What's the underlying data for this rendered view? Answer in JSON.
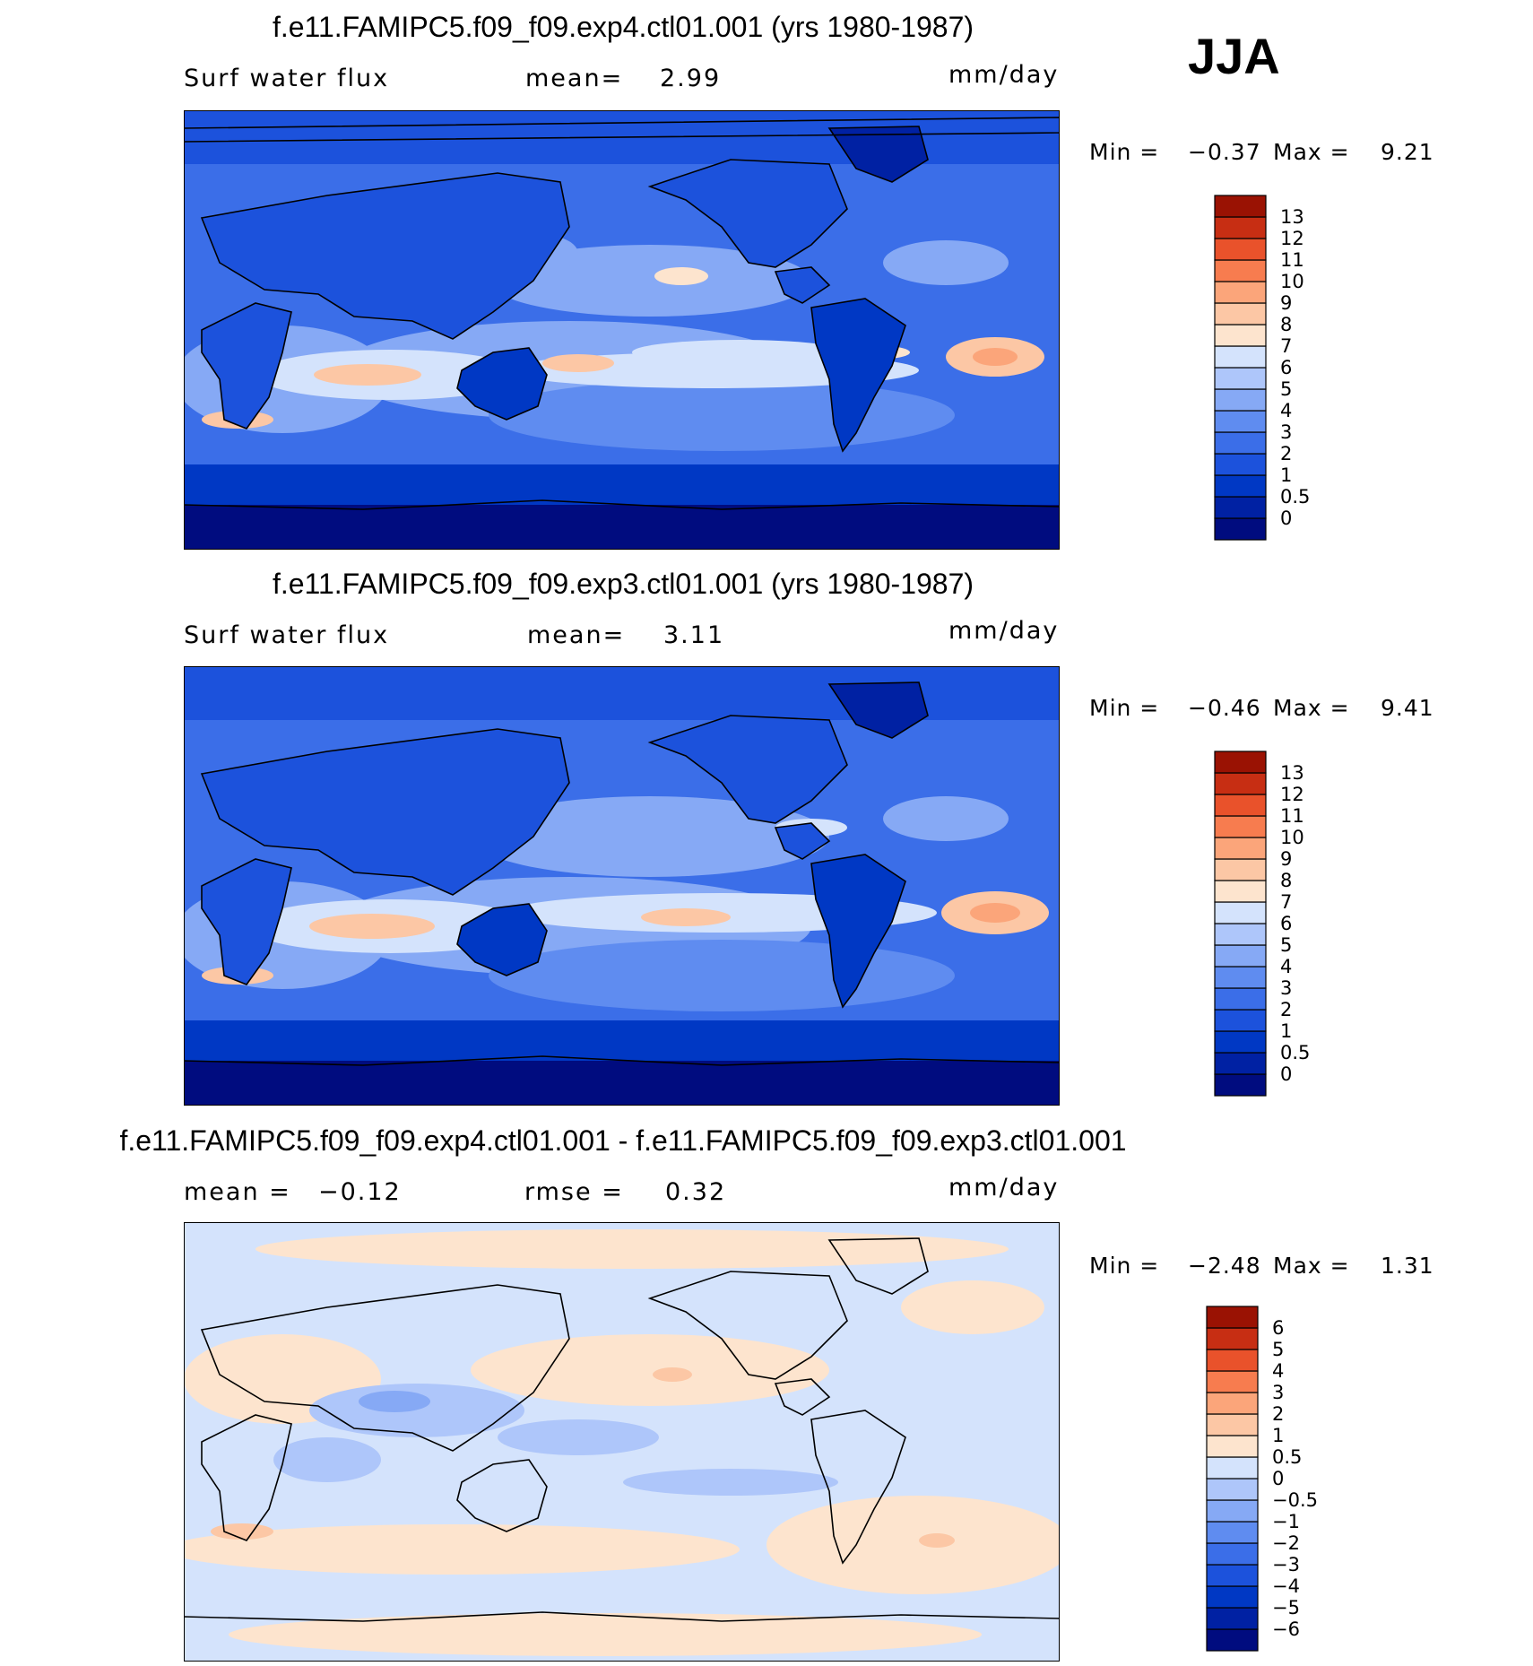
{
  "season": "JJA",
  "panels": [
    {
      "title": "f.e11.FAMIPC5.f09_f09.exp4.ctl01.001 (yrs 1980-1987)",
      "left_label": "Surf water flux",
      "stat_label": "mean=",
      "stat_value": "2.99",
      "units": "mm/day",
      "min_label": "Min =",
      "min_value": "−0.37",
      "max_label": "Max =",
      "max_value": "9.21"
    },
    {
      "title": "f.e11.FAMIPC5.f09_f09.exp3.ctl01.001 (yrs 1980-1987)",
      "left_label": "Surf water flux",
      "stat_label": "mean=",
      "stat_value": "3.11",
      "units": "mm/day",
      "min_label": "Min =",
      "min_value": "−0.46",
      "max_label": "Max =",
      "max_value": "9.41"
    },
    {
      "title": "f.e11.FAMIPC5.f09_f09.exp4.ctl01.001 - f.e11.FAMIPC5.f09_f09.exp3.ctl01.001",
      "left_label": "mean =",
      "left_value": "−0.12",
      "stat_label": "rmse =",
      "stat_value": "0.32",
      "units": "mm/day",
      "min_label": "Min =",
      "min_value": "−2.48",
      "max_label": "Max =",
      "max_value": "1.31"
    }
  ],
  "chart_data": [
    {
      "type": "heatmap",
      "title": "f.e11.FAMIPC5.f09_f09.exp4.ctl01.001 (yrs 1980-1987)",
      "variable": "Surf water flux",
      "units": "mm/day",
      "mean": 2.99,
      "min": -0.37,
      "max": 9.21,
      "colorbar_levels": [
        "0",
        "0.5",
        "1",
        "2",
        "3",
        "4",
        "5",
        "6",
        "7",
        "8",
        "9",
        "10",
        "11",
        "12",
        "13"
      ],
      "colorbar_colors": [
        "#000c7f",
        "#0021a3",
        "#0038c4",
        "#1c52dc",
        "#3b6ee8",
        "#5f8cf0",
        "#86a9f5",
        "#aec6fa",
        "#d4e3fc",
        "#fde4ce",
        "#fcc7a5",
        "#fba57a",
        "#f77c4f",
        "#e9522b",
        "#c72e13",
        "#9a1203"
      ]
    },
    {
      "type": "heatmap",
      "title": "f.e11.FAMIPC5.f09_f09.exp3.ctl01.001 (yrs 1980-1987)",
      "variable": "Surf water flux",
      "units": "mm/day",
      "mean": 3.11,
      "min": -0.46,
      "max": 9.41,
      "colorbar_levels": [
        "0",
        "0.5",
        "1",
        "2",
        "3",
        "4",
        "5",
        "6",
        "7",
        "8",
        "9",
        "10",
        "11",
        "12",
        "13"
      ],
      "colorbar_colors": [
        "#000c7f",
        "#0021a3",
        "#0038c4",
        "#1c52dc",
        "#3b6ee8",
        "#5f8cf0",
        "#86a9f5",
        "#aec6fa",
        "#d4e3fc",
        "#fde4ce",
        "#fcc7a5",
        "#fba57a",
        "#f77c4f",
        "#e9522b",
        "#c72e13",
        "#9a1203"
      ]
    },
    {
      "type": "heatmap",
      "title": "f.e11.FAMIPC5.f09_f09.exp4.ctl01.001 - f.e11.FAMIPC5.f09_f09.exp3.ctl01.001",
      "units": "mm/day",
      "mean": -0.12,
      "rmse": 0.32,
      "min": -2.48,
      "max": 1.31,
      "colorbar_levels": [
        "−6",
        "−5",
        "−4",
        "−3",
        "−2",
        "−1",
        "−0.5",
        "0",
        "0.5",
        "1",
        "2",
        "3",
        "4",
        "5",
        "6"
      ],
      "colorbar_colors": [
        "#000c7f",
        "#0021a3",
        "#0038c4",
        "#1c52dc",
        "#3b6ee8",
        "#5f8cf0",
        "#86a9f5",
        "#aec6fa",
        "#d4e3fc",
        "#fde4ce",
        "#fcc7a5",
        "#fba57a",
        "#f77c4f",
        "#e9522b",
        "#c72e13",
        "#9a1203"
      ]
    }
  ]
}
